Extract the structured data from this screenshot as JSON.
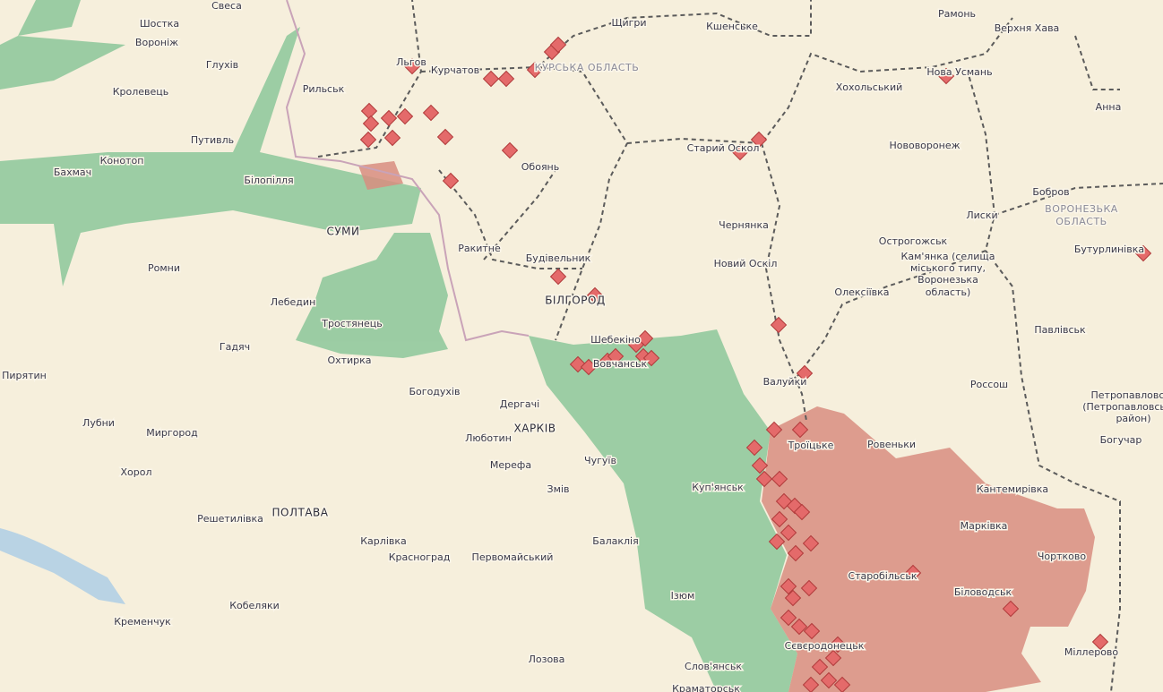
{
  "labels": [
    "Свеса",
    "Шостка",
    "Воронiж",
    "Глухів",
    "Кролевець",
    "Путивль",
    "Конотоп",
    "Бахмач",
    "Білопілля",
    "СУМИ",
    "Ромни",
    "Лебедин",
    "Тростянець",
    "Охтирка",
    "Гадяч",
    "Пирятин",
    "Лубни",
    "Миргород",
    "Хорол",
    "Решетилівка",
    "ПОЛТАВА",
    "Карлівка",
    "Красноград",
    "Первомайський",
    "Кобеляки",
    "Кременчук",
    "Лозова",
    "Богодухів",
    "Дергачі",
    "ХАРКІВ",
    "Люботин",
    "Мерефа",
    "Чугуїв",
    "Змів",
    "Балаклія",
    "Ізюм",
    "Слов'янськ",
    "Краматорськ",
    "Куп'янськ",
    "Вовчанськ",
    "Шебекіно",
    "БІЛГОРОД",
    "Будівельник",
    "Ракитне",
    "Обоянь",
    "Рильськ",
    "Льгов",
    "Курчатов",
    "КУРСЬКА ОБЛАСТЬ",
    "Щигри",
    "Кшенське",
    "Старий Оскол",
    "Чернянка",
    "Новий Оскіл",
    "Валуйки",
    "Троїцьке",
    "Ровеньки",
    "Олексіївка",
    "Острогожськ",
    "Кам'янка (селища",
    "міського типу,",
    "Воронезька",
    "область)",
    "Нововоронеж",
    "Хохольський",
    "Нова Усмань",
    "Рамонь",
    "Верхня Хава",
    "Анна",
    "Бобров",
    "Лиски",
    "ВОРОНЕЗЬКА",
    "ОБЛАСТЬ",
    "Бутурлинівка",
    "Павлівськ",
    "Россош",
    "Петропавловськ",
    "(Петропавловський",
    "район)",
    "Богучар",
    "Кантемирівка",
    "Марківка",
    "Чортково",
    "Старобільськ",
    "Біловодськ",
    "Міллерово",
    "Сєвєродонецьк",
    "Пирятин"
  ]
}
